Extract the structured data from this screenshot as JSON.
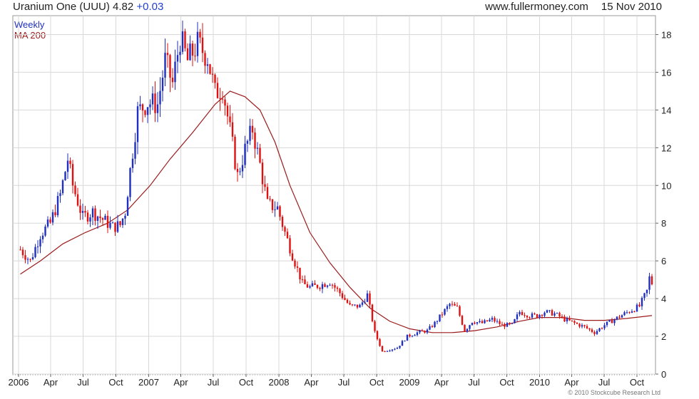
{
  "header": {
    "symbol_title": "Uranium One (UUU)",
    "last_price": "4.82",
    "change": "+0.03",
    "website": "www.fullermoney.com",
    "date": "15 Nov 2010"
  },
  "footer": {
    "copyright": "© 2010 Stockcube Research Ltd"
  },
  "colors": {
    "up": "#1f2fbf",
    "down": "#e01010",
    "ma": "#9b1b1b",
    "grid": "#d8d8d8",
    "frame": "#999999"
  },
  "chart_data": {
    "type": "line",
    "timeframe": "Weekly",
    "legend": [
      "Weekly",
      "MA 200"
    ],
    "yaxis_position": "right",
    "ylim": [
      0,
      19
    ],
    "yticks": [
      0,
      2,
      4,
      6,
      8,
      10,
      12,
      14,
      16,
      18
    ],
    "x_tick_labels": [
      "2006",
      "Apr",
      "Jul",
      "Oct",
      "2007",
      "Apr",
      "Jul",
      "Oct",
      "2008",
      "Apr",
      "Jul",
      "Oct",
      "2009",
      "Apr",
      "Jul",
      "Oct",
      "2010",
      "Apr",
      "Jul",
      "Oct"
    ],
    "grid": true,
    "series": [
      {
        "name": "Weekly",
        "style": "candlestick",
        "points": [
          [
            "2006-01-06",
            6.6
          ],
          [
            "2006-02-03",
            6.0
          ],
          [
            "2006-03-03",
            7.4
          ],
          [
            "2006-03-31",
            8.0
          ],
          [
            "2006-04-28",
            9.5
          ],
          [
            "2006-05-19",
            11.4
          ],
          [
            "2006-06-02",
            10.0
          ],
          [
            "2006-06-30",
            8.3
          ],
          [
            "2006-07-28",
            8.6
          ],
          [
            "2006-08-25",
            8.2
          ],
          [
            "2006-09-22",
            7.8
          ],
          [
            "2006-10-13",
            7.9
          ],
          [
            "2006-10-27",
            8.6
          ],
          [
            "2006-11-10",
            10.8
          ],
          [
            "2006-12-01",
            13.9
          ],
          [
            "2006-12-29",
            14.4
          ],
          [
            "2007-01-26",
            14.3
          ],
          [
            "2007-02-16",
            16.6
          ],
          [
            "2007-03-09",
            15.4
          ],
          [
            "2007-03-30",
            17.8
          ],
          [
            "2007-04-20",
            16.6
          ],
          [
            "2007-05-18",
            17.5
          ],
          [
            "2007-06-15",
            16.8
          ],
          [
            "2007-07-06",
            14.9
          ],
          [
            "2007-07-27",
            15.2
          ],
          [
            "2007-08-17",
            12.9
          ],
          [
            "2007-09-07",
            10.5
          ],
          [
            "2007-09-28",
            11.9
          ],
          [
            "2007-10-19",
            13.0
          ],
          [
            "2007-11-09",
            11.1
          ],
          [
            "2007-11-30",
            9.0
          ],
          [
            "2007-12-28",
            8.8
          ],
          [
            "2008-01-18",
            7.5
          ],
          [
            "2008-02-08",
            6.3
          ],
          [
            "2008-03-07",
            4.8
          ],
          [
            "2008-03-28",
            4.6
          ],
          [
            "2008-04-25",
            4.7
          ],
          [
            "2008-05-23",
            4.9
          ],
          [
            "2008-06-20",
            4.3
          ],
          [
            "2008-07-18",
            3.6
          ],
          [
            "2008-08-15",
            3.6
          ],
          [
            "2008-09-05",
            4.2
          ],
          [
            "2008-09-26",
            2.2
          ],
          [
            "2008-10-17",
            1.2
          ],
          [
            "2008-11-07",
            1.3
          ],
          [
            "2008-11-28",
            1.4
          ],
          [
            "2008-12-26",
            2.0
          ],
          [
            "2009-01-23",
            2.2
          ],
          [
            "2009-02-20",
            2.3
          ],
          [
            "2009-03-13",
            2.7
          ],
          [
            "2009-04-03",
            3.2
          ],
          [
            "2009-04-24",
            3.7
          ],
          [
            "2009-05-15",
            3.5
          ],
          [
            "2009-06-05",
            2.3
          ],
          [
            "2009-06-26",
            2.8
          ],
          [
            "2009-07-24",
            2.7
          ],
          [
            "2009-08-21",
            2.9
          ],
          [
            "2009-09-18",
            2.6
          ],
          [
            "2009-10-16",
            2.6
          ],
          [
            "2009-11-06",
            3.3
          ],
          [
            "2009-12-04",
            3.1
          ],
          [
            "2009-12-25",
            3.1
          ],
          [
            "2010-01-15",
            3.3
          ],
          [
            "2010-02-12",
            3.2
          ],
          [
            "2010-03-12",
            2.9
          ],
          [
            "2010-04-09",
            2.7
          ],
          [
            "2010-05-07",
            2.5
          ],
          [
            "2010-06-04",
            2.2
          ],
          [
            "2010-07-02",
            2.6
          ],
          [
            "2010-07-30",
            2.9
          ],
          [
            "2010-08-27",
            3.2
          ],
          [
            "2010-09-17",
            3.4
          ],
          [
            "2010-10-08",
            3.6
          ],
          [
            "2010-10-29",
            4.4
          ],
          [
            "2010-11-05",
            5.1
          ],
          [
            "2010-11-12",
            4.82
          ]
        ]
      },
      {
        "name": "MA 200",
        "style": "line",
        "points": [
          [
            "2006-01-06",
            5.3
          ],
          [
            "2006-03-03",
            6.0
          ],
          [
            "2006-05-05",
            6.9
          ],
          [
            "2006-07-07",
            7.5
          ],
          [
            "2006-09-08",
            8.0
          ],
          [
            "2006-11-03",
            8.7
          ],
          [
            "2007-01-05",
            10.0
          ],
          [
            "2007-03-02",
            11.4
          ],
          [
            "2007-05-04",
            12.8
          ],
          [
            "2007-07-06",
            14.3
          ],
          [
            "2007-08-17",
            15.0
          ],
          [
            "2007-09-28",
            14.7
          ],
          [
            "2007-11-09",
            14.0
          ],
          [
            "2007-12-21",
            12.3
          ],
          [
            "2008-02-01",
            10.0
          ],
          [
            "2008-03-28",
            7.5
          ],
          [
            "2008-05-23",
            5.9
          ],
          [
            "2008-07-18",
            4.6
          ],
          [
            "2008-09-12",
            3.5
          ],
          [
            "2008-11-07",
            2.8
          ],
          [
            "2009-01-02",
            2.4
          ],
          [
            "2009-03-06",
            2.2
          ],
          [
            "2009-05-01",
            2.2
          ],
          [
            "2009-07-03",
            2.3
          ],
          [
            "2009-09-04",
            2.5
          ],
          [
            "2009-11-06",
            2.8
          ],
          [
            "2010-01-01",
            3.0
          ],
          [
            "2010-03-05",
            3.0
          ],
          [
            "2010-05-07",
            2.85
          ],
          [
            "2010-07-02",
            2.85
          ],
          [
            "2010-09-03",
            2.95
          ],
          [
            "2010-11-12",
            3.1
          ]
        ]
      }
    ]
  }
}
